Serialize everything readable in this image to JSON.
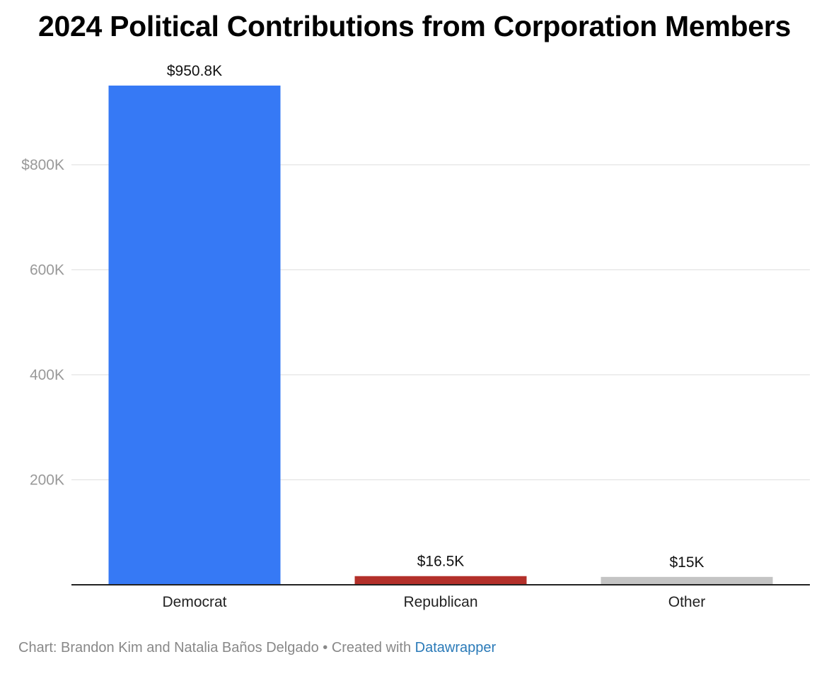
{
  "title": "2024 Political Contributions from Corporation Members",
  "chart_data": {
    "type": "bar",
    "title": "2024 Political Contributions from Corporation Members",
    "xlabel": "",
    "ylabel": "",
    "categories": [
      "Democrat",
      "Republican",
      "Other"
    ],
    "values": [
      950800,
      16500,
      15000
    ],
    "value_labels": [
      "$950.8K",
      "$16.5K",
      "$15K"
    ],
    "colors": [
      "#3679f5",
      "#b3302a",
      "#c4c4c4"
    ],
    "ylim": [
      0,
      1000000
    ],
    "y_ticks": [
      200000,
      400000,
      600000,
      800000
    ],
    "y_tick_labels": [
      "200K",
      "400K",
      "600K",
      "$800K"
    ],
    "grid": true,
    "legend": "none"
  },
  "footer": {
    "credit": "Chart: Brandon Kim and Natalia Baños Delgado • Created with ",
    "link": "Datawrapper"
  },
  "colors": {
    "axis": "#222222",
    "grid": "#e4e4e4",
    "tick_label": "#999999",
    "category_label": "#222222",
    "value_label": "#111111"
  }
}
